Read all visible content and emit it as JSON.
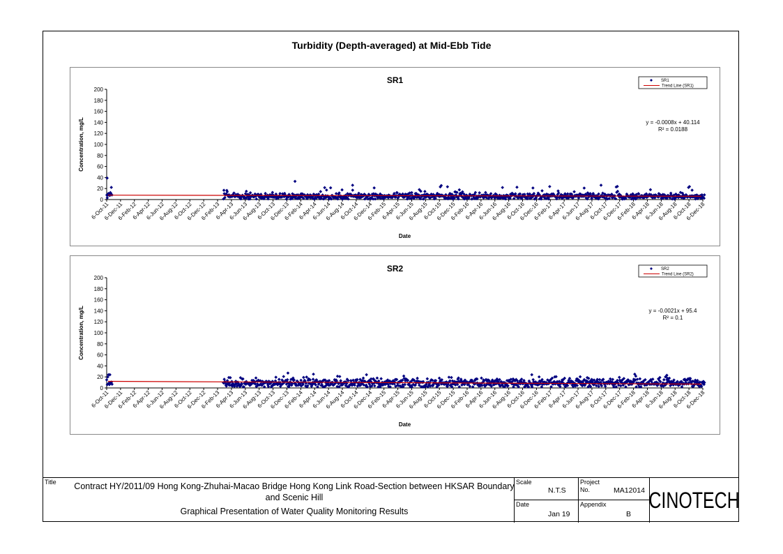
{
  "header": {
    "title": "Turbidity (Depth-averaged) at Mid-Ebb Tide"
  },
  "chart_data": [
    {
      "type": "scatter",
      "title": "SR1",
      "xlabel": "Date",
      "ylabel": "Concentration, mg/L",
      "ylim": [
        0,
        200
      ],
      "yticks": [
        0,
        20,
        40,
        60,
        80,
        100,
        120,
        140,
        160,
        180,
        200
      ],
      "xticks": [
        "6-Oct-11",
        "6-Dec-11",
        "6-Feb-12",
        "6-Apr-12",
        "6-Jun-12",
        "6-Aug-12",
        "6-Oct-12",
        "6-Dec-12",
        "6-Feb-13",
        "6-Apr-13",
        "6-Jun-13",
        "6-Aug-13",
        "6-Oct-13",
        "6-Dec-13",
        "6-Feb-14",
        "6-Apr-14",
        "6-Jun-14",
        "6-Aug-14",
        "6-Oct-14",
        "6-Dec-14",
        "6-Feb-15",
        "6-Apr-15",
        "6-Jun-15",
        "6-Aug-15",
        "6-Oct-15",
        "6-Dec-15",
        "6-Feb-16",
        "6-Apr-16",
        "6-Jun-16",
        "6-Aug-16",
        "6-Oct-16",
        "6-Dec-16",
        "6-Feb-17",
        "6-Apr-17",
        "6-Jun-17",
        "6-Aug-17",
        "6-Oct-17",
        "6-Dec-17",
        "6-Feb-18",
        "6-Apr-18",
        "6-Jun-18",
        "6-Aug-18",
        "6-Oct-18",
        "6-Dec-18"
      ],
      "grid": false,
      "legend_position": "top-right",
      "series": [
        {
          "name": "SR1",
          "marker": "diamond",
          "color": "#000080",
          "points_note_visible": "dense daily-ish samples, mostly 2-15 mg/L",
          "clusters": [
            {
              "x_start": "2011-10-06",
              "x_end": "2011-10-31",
              "y_min": 3,
              "y_max": 39,
              "typical": 10
            },
            {
              "x_start": "2013-03-01",
              "x_end": "2018-12-15",
              "y_min": 1,
              "y_max": 34,
              "typical": 6
            }
          ],
          "peaks": [
            {
              "x": "2011-10-08",
              "y": 39
            },
            {
              "x": "2014-01-10",
              "y": 33
            },
            {
              "x": "2014-09-20",
              "y": 26
            },
            {
              "x": "2017-09-15",
              "y": 26
            },
            {
              "x": "2015-07-10",
              "y": 18
            },
            {
              "x": "2016-11-20",
              "y": 21
            },
            {
              "x": "2018-10-20",
              "y": 17
            }
          ]
        },
        {
          "name": "Trend Line (SR1)",
          "type": "line",
          "color": "#cc0000",
          "y_start": 8,
          "y_end": 6
        }
      ],
      "annotations": [
        "y = -0.0008x + 40.114",
        "R² = 0.0188"
      ]
    },
    {
      "type": "scatter",
      "title": "SR2",
      "xlabel": "Date",
      "ylabel": "Concentration, mg/L",
      "ylim": [
        0,
        200
      ],
      "yticks": [
        0,
        20,
        40,
        60,
        80,
        100,
        120,
        140,
        160,
        180,
        200
      ],
      "xticks": [
        "6-Oct-11",
        "6-Dec-11",
        "6-Feb-12",
        "6-Apr-12",
        "6-Jun-12",
        "6-Aug-12",
        "6-Oct-12",
        "6-Dec-12",
        "6-Feb-13",
        "6-Apr-13",
        "6-Jun-13",
        "6-Aug-13",
        "6-Oct-13",
        "6-Dec-13",
        "6-Feb-14",
        "6-Apr-14",
        "6-Jun-14",
        "6-Aug-14",
        "6-Oct-14",
        "6-Dec-14",
        "6-Feb-15",
        "6-Apr-15",
        "6-Jun-15",
        "6-Aug-15",
        "6-Oct-15",
        "6-Dec-15",
        "6-Feb-16",
        "6-Apr-16",
        "6-Jun-16",
        "6-Aug-16",
        "6-Oct-16",
        "6-Dec-16",
        "6-Feb-17",
        "6-Apr-17",
        "6-Jun-17",
        "6-Aug-17",
        "6-Oct-17",
        "6-Dec-17",
        "6-Feb-18",
        "6-Apr-18",
        "6-Jun-18",
        "6-Aug-18",
        "6-Oct-18",
        "6-Dec-18"
      ],
      "grid": false,
      "legend_position": "top-right",
      "series": [
        {
          "name": "SR2",
          "marker": "diamond",
          "color": "#000080",
          "clusters": [
            {
              "x_start": "2011-10-06",
              "x_end": "2011-10-31",
              "y_min": 6,
              "y_max": 24,
              "typical": 14
            },
            {
              "x_start": "2013-03-01",
              "x_end": "2018-12-15",
              "y_min": 2,
              "y_max": 27,
              "typical": 9
            }
          ],
          "peaks": [
            {
              "x": "2011-10-20",
              "y": 24
            },
            {
              "x": "2013-12-10",
              "y": 27
            },
            {
              "x": "2014-04-01",
              "y": 25
            },
            {
              "x": "2014-11-20",
              "y": 24
            },
            {
              "x": "2016-11-15",
              "y": 24
            },
            {
              "x": "2018-02-10",
              "y": 25
            },
            {
              "x": "2018-07-01",
              "y": 23
            }
          ]
        },
        {
          "name": "Trend Line (SR2)",
          "type": "line",
          "color": "#cc0000",
          "y_start": 12,
          "y_end": 7
        }
      ],
      "annotations": [
        "y = -0.0021x + 95.4",
        "R² = 0.1"
      ]
    }
  ],
  "footer": {
    "title_label": "Title",
    "title_line1": "Contract HY/2011/09 Hong Kong-Zhuhai-Macao Bridge Hong Kong Link Road-Section between HKSAR Boundary and Scenic Hill",
    "title_line2": "Graphical Presentation of Water Quality Monitoring Results",
    "scale_label": "Scale",
    "scale_value": "N.T.S",
    "project_label": "Project",
    "no_label": "No.",
    "project_no": "MA12014",
    "date_label": "Date",
    "date_value": "Jan 19",
    "appendix_label": "Appendix",
    "appendix_value": "B",
    "logo_text": "CINOTECH"
  }
}
